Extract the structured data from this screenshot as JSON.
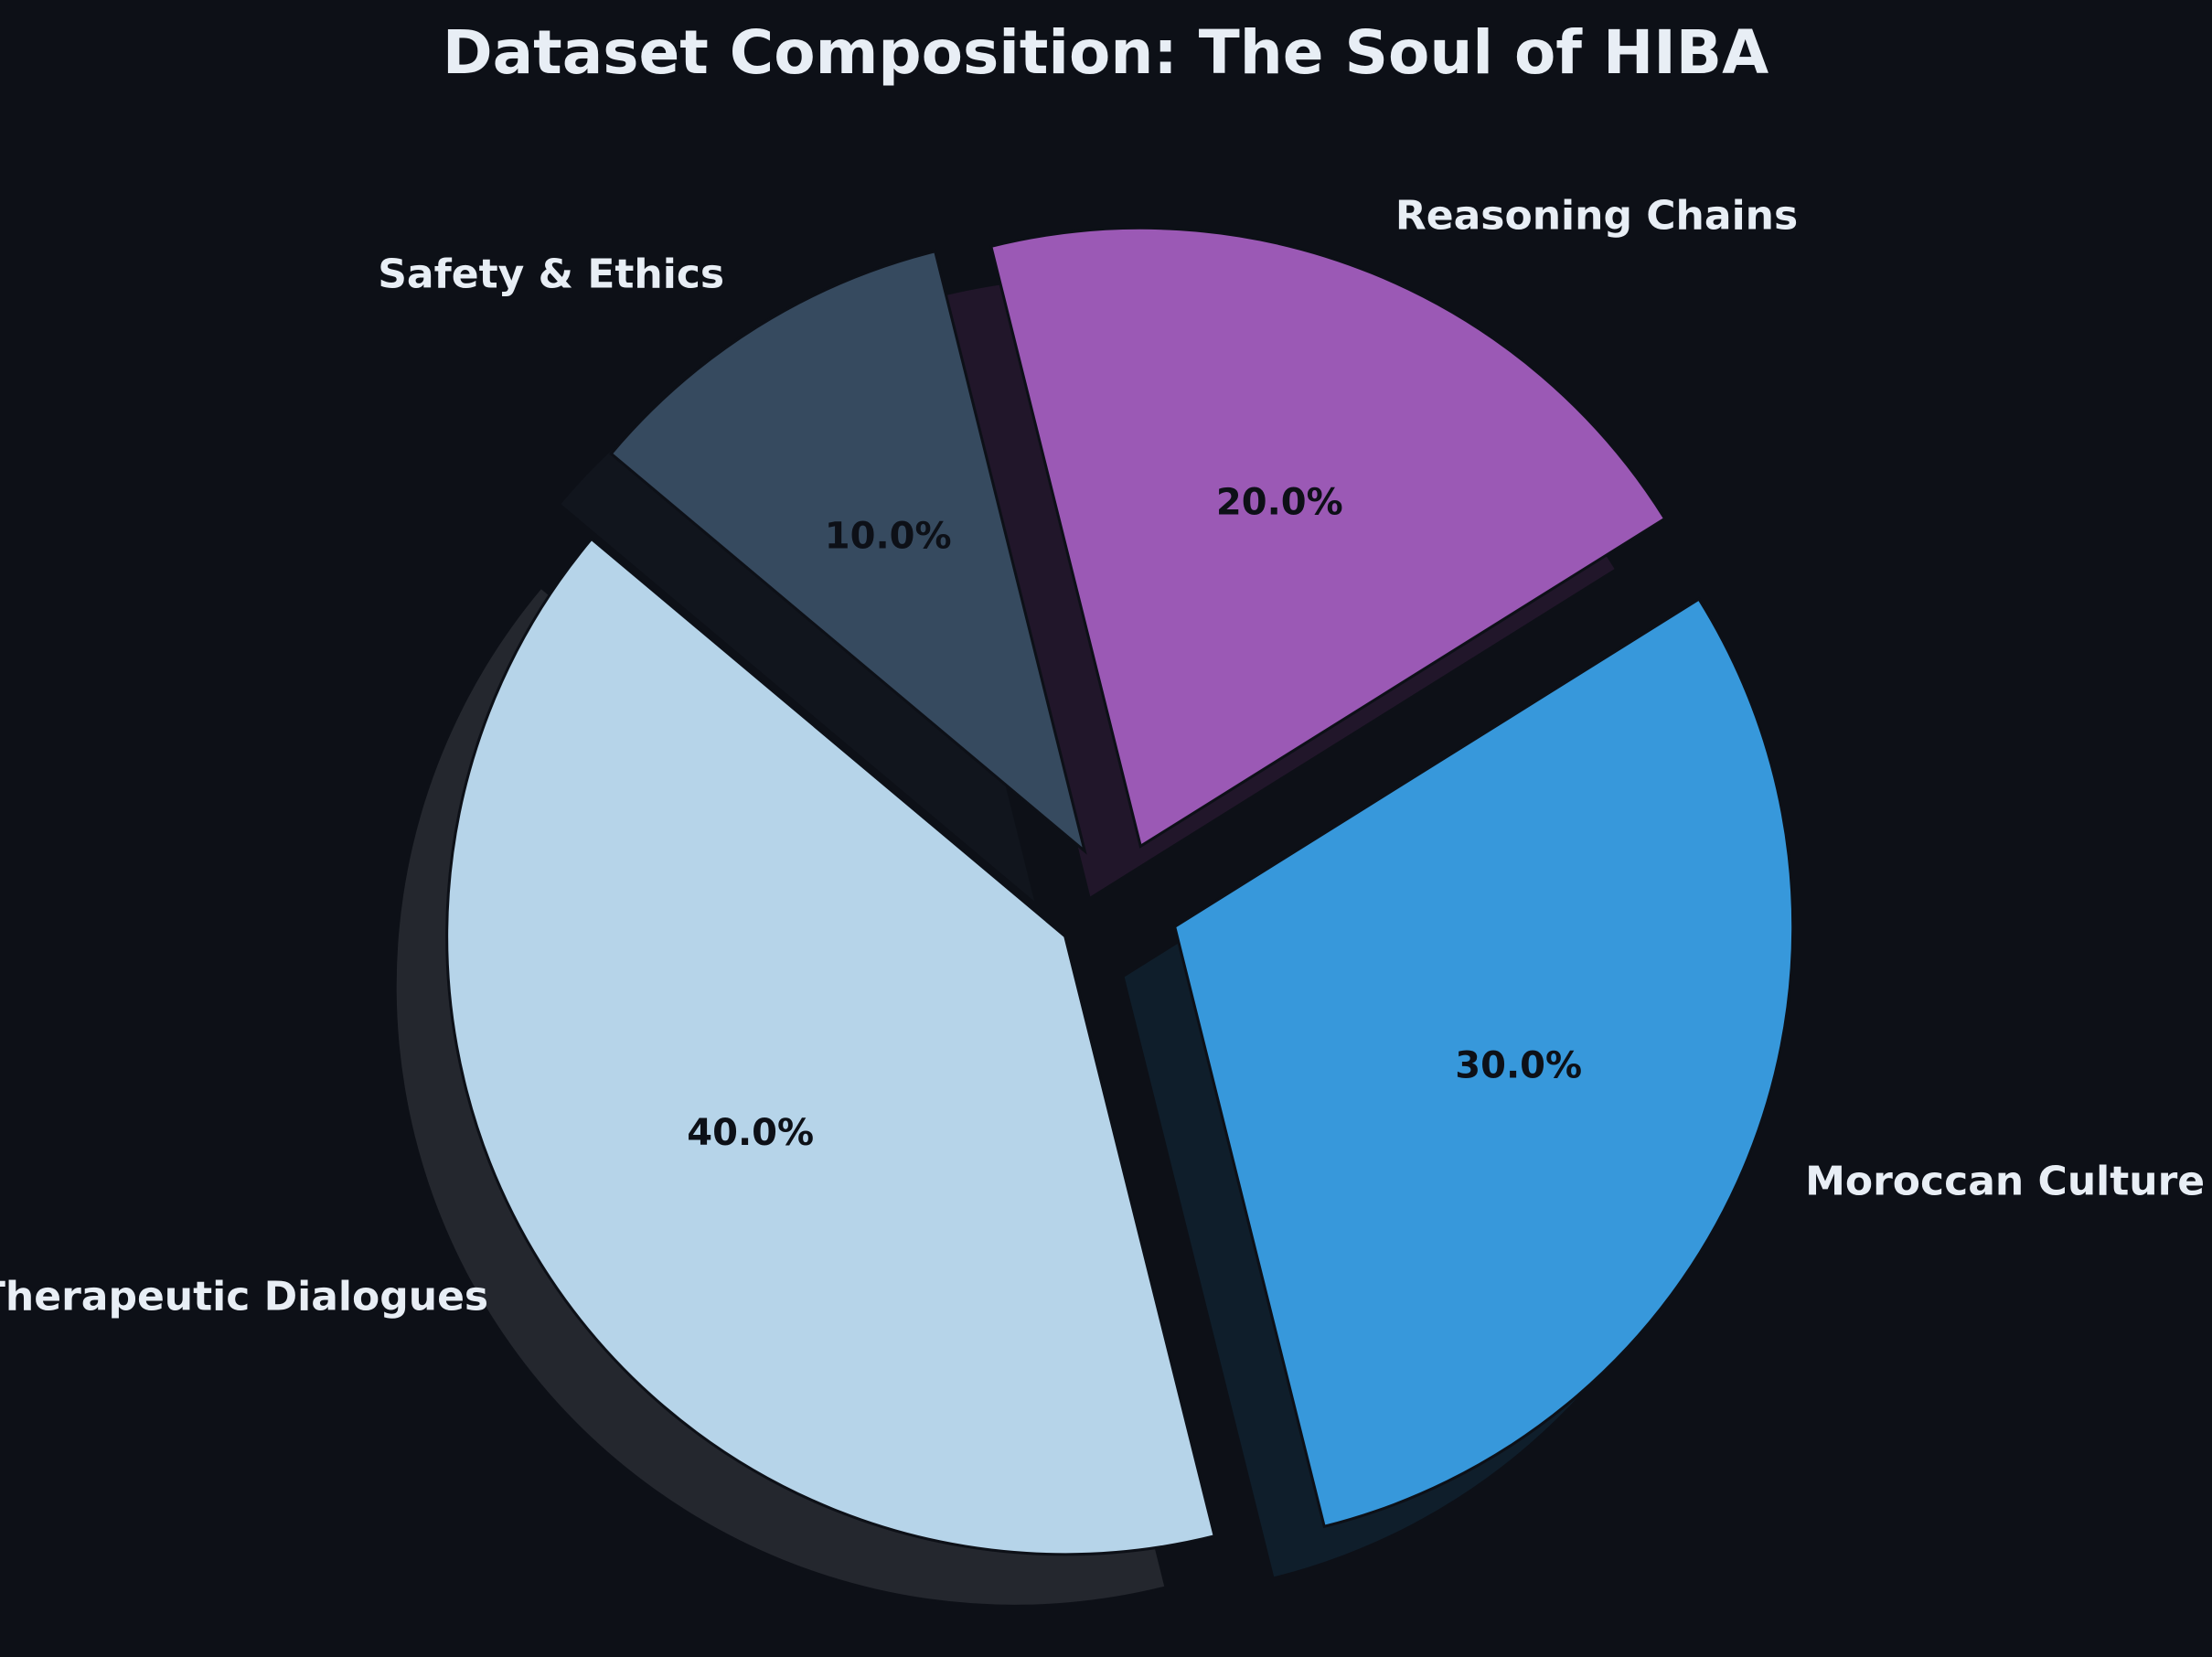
{
  "chart_data": {
    "type": "pie",
    "title": "Dataset Composition: The Soul of HIBA",
    "slices": [
      {
        "label": "Therapeutic Dialogues",
        "value": 40.0,
        "pct_label": "40.0%",
        "color": "#b6d4e9",
        "exploded": true
      },
      {
        "label": "Moroccan Culture",
        "value": 30.0,
        "pct_label": "30.0%",
        "color": "#3798db",
        "exploded": true
      },
      {
        "label": "Reasoning Chains",
        "value": 20.0,
        "pct_label": "20.0%",
        "color": "#9b59b5",
        "exploded": true
      },
      {
        "label": "Safety & Ethics",
        "value": 10.0,
        "pct_label": "10.0%",
        "color": "#364a5f",
        "exploded": true
      }
    ],
    "start_angle_deg": 140,
    "direction": "counterclockwise",
    "shadow": true,
    "legend": "none"
  },
  "colors": {
    "background": "#0d1017",
    "title_text": "#e8eef5",
    "label_text": "#e8eef5",
    "pct_text": "#0d1017",
    "slice_edge": "#0d1017"
  }
}
